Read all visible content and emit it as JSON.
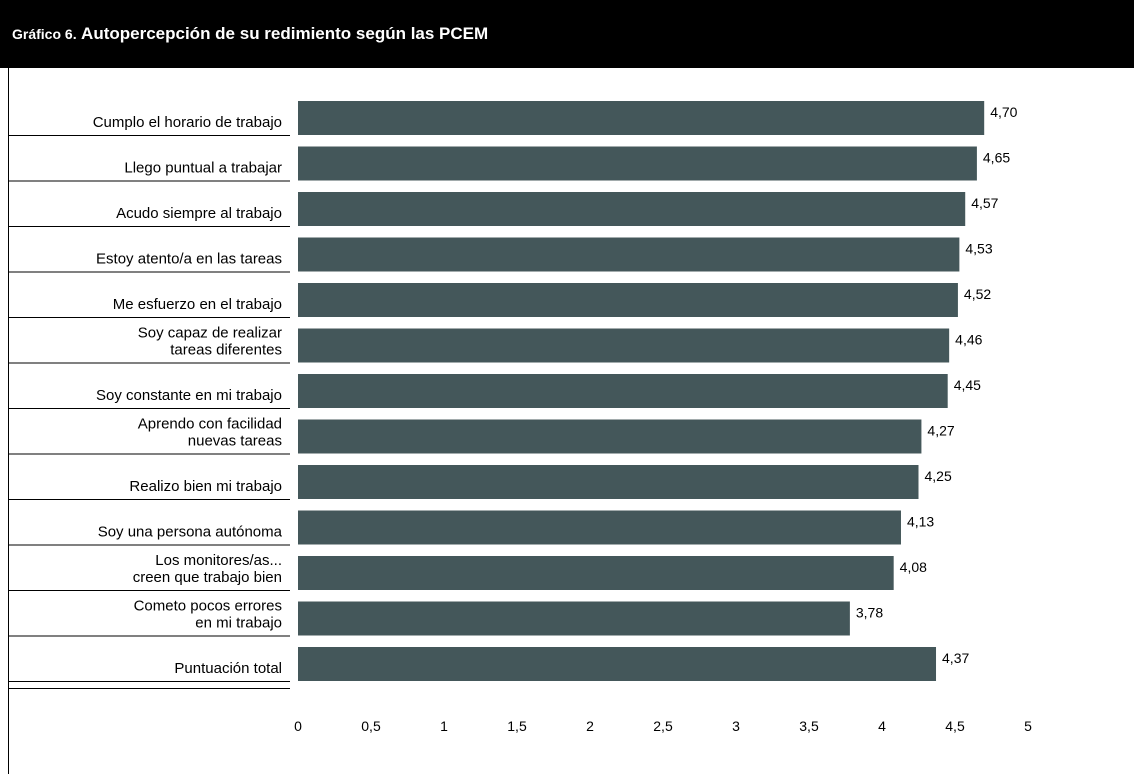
{
  "header": {
    "title_prefix": "Gráfico 6.",
    "title_text": "Autopercepción de su redimiento según las PCEM",
    "background": "#000000",
    "text_color": "#ffffff"
  },
  "chart_data": {
    "type": "bar",
    "orientation": "horizontal",
    "categories": [
      [
        "Cumplo el horario de trabajo"
      ],
      [
        "Llego puntual a trabajar"
      ],
      [
        "Acudo siempre al trabajo"
      ],
      [
        "Estoy atento/a en las tareas"
      ],
      [
        "Me esfuerzo en el trabajo"
      ],
      [
        "Soy capaz de realizar",
        "tareas diferentes"
      ],
      [
        "Soy constante en mi trabajo"
      ],
      [
        "Aprendo con facilidad",
        "nuevas tareas"
      ],
      [
        "Realizo bien mi trabajo"
      ],
      [
        "Soy una persona autónoma"
      ],
      [
        "Los monitores/as...",
        "creen que trabajo bien"
      ],
      [
        "Cometo pocos errores",
        "en mi trabajo"
      ],
      [
        "Puntuación total"
      ]
    ],
    "values": [
      4.7,
      4.65,
      4.57,
      4.53,
      4.52,
      4.46,
      4.45,
      4.27,
      4.25,
      4.13,
      4.08,
      3.78,
      4.37
    ],
    "value_labels": [
      "4,70",
      "4,65",
      "4,57",
      "4,53",
      "4,52",
      "4,46",
      "4,45",
      "4,27",
      "4,25",
      "4,13",
      "4,08",
      "3,78",
      "4,37"
    ],
    "xlim": [
      0,
      5
    ],
    "x_ticks": [
      0,
      0.5,
      1,
      1.5,
      2,
      2.5,
      3,
      3.5,
      4,
      4.5,
      5
    ],
    "x_tick_labels": [
      "0",
      "0,5",
      "1",
      "1,5",
      "2",
      "2,5",
      "3",
      "3,5",
      "4",
      "4,5",
      "5"
    ],
    "bar_color": "#44575a",
    "grid": false,
    "legend": "none"
  }
}
